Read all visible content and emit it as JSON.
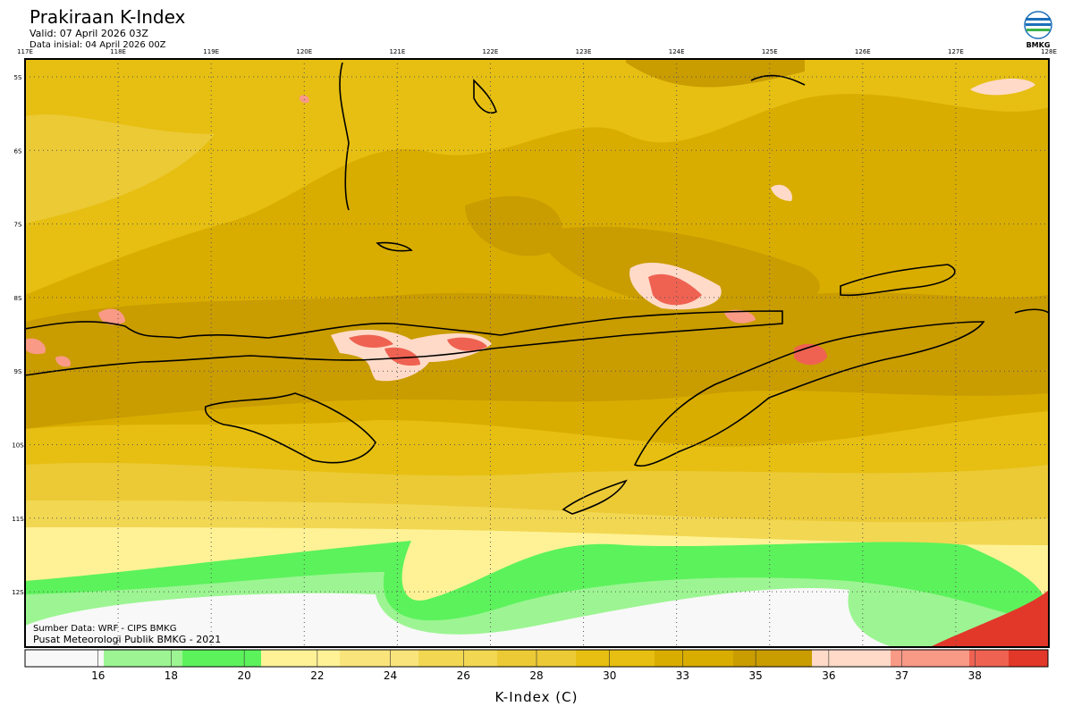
{
  "header": {
    "title": "Prakiraan K-Index",
    "valid": "Valid: 07 April 2026 03Z",
    "initial": "Data inisial: 04 April 2026 00Z",
    "logo_text": "BMKG"
  },
  "map": {
    "longitude_labels": [
      "117E",
      "118E",
      "119E",
      "120E",
      "121E",
      "122E",
      "123E",
      "124E",
      "125E",
      "126E",
      "127E",
      "128E"
    ],
    "latitude_labels": [
      "5S",
      "6S",
      "7S",
      "8S",
      "9S",
      "10S",
      "11S",
      "12S"
    ],
    "source": "Sumber Data: WRF - CIPS BMKG",
    "credit": "Pusat Meteorologi Publik BMKG - 2021"
  },
  "colorbar": {
    "label": "K-Index (C)",
    "ticks": [
      16,
      18,
      20,
      22,
      24,
      26,
      28,
      30,
      33,
      35,
      36,
      37,
      38
    ],
    "colors": [
      "#f8f8f8",
      "#9cf592",
      "#5cf25c",
      "#fff296",
      "#f9e47c",
      "#f2d752",
      "#ecca36",
      "#e6bf12",
      "#d9ad00",
      "#c99c00",
      "#ffdac8",
      "#f89a86",
      "#ef6252",
      "#e2382a"
    ]
  }
}
